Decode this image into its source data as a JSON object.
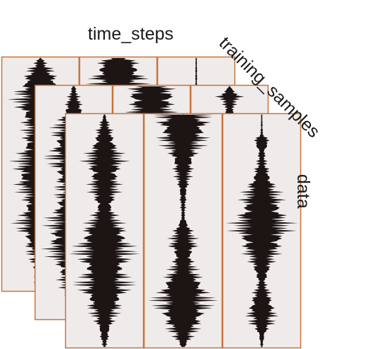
{
  "labels": {
    "time_axis": "time_steps",
    "sample_axis": "training_samples",
    "data_axis": "data"
  },
  "colors": {
    "panel_fill": "#efebeb",
    "panel_border": "#c8733a",
    "waveform": "#1c1514",
    "center_line": "#9a9a9a"
  },
  "layers": [
    {
      "name": "back",
      "panels": [
        {
          "envelope": [
            [
              0.0,
              0.05
            ],
            [
              0.04,
              0.35
            ],
            [
              0.1,
              0.75
            ],
            [
              0.2,
              0.95
            ],
            [
              0.3,
              0.55
            ],
            [
              0.42,
              0.8
            ],
            [
              0.52,
              1.0
            ],
            [
              0.6,
              0.6
            ],
            [
              0.72,
              0.85
            ],
            [
              0.85,
              0.4
            ],
            [
              1.0,
              0.15
            ]
          ]
        },
        {
          "envelope": [
            [
              0.0,
              0.4
            ],
            [
              0.03,
              0.9
            ],
            [
              0.1,
              1.0
            ],
            [
              0.18,
              0.6
            ],
            [
              0.28,
              0.3
            ],
            [
              0.4,
              0.5
            ],
            [
              0.6,
              0.4
            ],
            [
              0.8,
              0.3
            ],
            [
              1.0,
              0.1
            ]
          ]
        },
        {
          "envelope": [
            [
              0.0,
              0.02
            ],
            [
              0.2,
              0.05
            ],
            [
              0.5,
              0.1
            ],
            [
              1.0,
              0.02
            ]
          ]
        }
      ]
    },
    {
      "name": "middle",
      "panels": [
        {
          "envelope": [
            [
              0.0,
              0.05
            ],
            [
              0.08,
              0.3
            ],
            [
              0.18,
              0.7
            ],
            [
              0.3,
              0.9
            ],
            [
              0.45,
              0.55
            ],
            [
              0.55,
              0.85
            ],
            [
              0.68,
              1.0
            ],
            [
              0.8,
              0.6
            ],
            [
              0.92,
              0.3
            ],
            [
              1.0,
              0.1
            ]
          ]
        },
        {
          "envelope": [
            [
              0.0,
              0.6
            ],
            [
              0.04,
              1.0
            ],
            [
              0.12,
              0.7
            ],
            [
              0.25,
              0.35
            ],
            [
              0.45,
              0.5
            ],
            [
              0.7,
              0.3
            ],
            [
              1.0,
              0.1
            ]
          ]
        },
        {
          "envelope": [
            [
              0.0,
              0.02
            ],
            [
              0.02,
              0.2
            ],
            [
              0.04,
              0.45
            ],
            [
              0.08,
              0.2
            ],
            [
              0.2,
              0.05
            ],
            [
              1.0,
              0.02
            ]
          ]
        }
      ]
    },
    {
      "name": "front",
      "panels": [
        {
          "envelope": [
            [
              0.0,
              0.03
            ],
            [
              0.05,
              0.2
            ],
            [
              0.12,
              0.45
            ],
            [
              0.2,
              0.7
            ],
            [
              0.27,
              0.55
            ],
            [
              0.33,
              0.5
            ],
            [
              0.4,
              0.3
            ],
            [
              0.45,
              0.5
            ],
            [
              0.52,
              0.95
            ],
            [
              0.6,
              1.0
            ],
            [
              0.68,
              0.8
            ],
            [
              0.74,
              0.95
            ],
            [
              0.8,
              0.7
            ],
            [
              0.86,
              0.45
            ],
            [
              0.92,
              0.25
            ],
            [
              1.0,
              0.05
            ]
          ]
        },
        {
          "envelope": [
            [
              0.0,
              0.85
            ],
            [
              0.04,
              1.0
            ],
            [
              0.1,
              0.85
            ],
            [
              0.16,
              0.55
            ],
            [
              0.23,
              0.35
            ],
            [
              0.3,
              0.2
            ],
            [
              0.38,
              0.1
            ],
            [
              0.44,
              0.06
            ],
            [
              0.5,
              0.35
            ],
            [
              0.56,
              0.5
            ],
            [
              0.62,
              0.35
            ],
            [
              0.68,
              0.5
            ],
            [
              0.74,
              0.9
            ],
            [
              0.8,
              1.0
            ],
            [
              0.86,
              0.9
            ],
            [
              0.92,
              0.55
            ],
            [
              1.0,
              0.08
            ]
          ]
        },
        {
          "envelope": [
            [
              0.0,
              0.02
            ],
            [
              0.08,
              0.04
            ],
            [
              0.12,
              0.35
            ],
            [
              0.16,
              0.12
            ],
            [
              0.22,
              0.18
            ],
            [
              0.3,
              0.5
            ],
            [
              0.38,
              0.75
            ],
            [
              0.44,
              0.95
            ],
            [
              0.5,
              1.0
            ],
            [
              0.56,
              0.8
            ],
            [
              0.62,
              0.45
            ],
            [
              0.68,
              0.3
            ],
            [
              0.72,
              0.12
            ],
            [
              0.78,
              0.35
            ],
            [
              0.84,
              0.55
            ],
            [
              0.9,
              0.4
            ],
            [
              0.94,
              0.15
            ],
            [
              1.0,
              0.03
            ]
          ]
        }
      ]
    }
  ]
}
